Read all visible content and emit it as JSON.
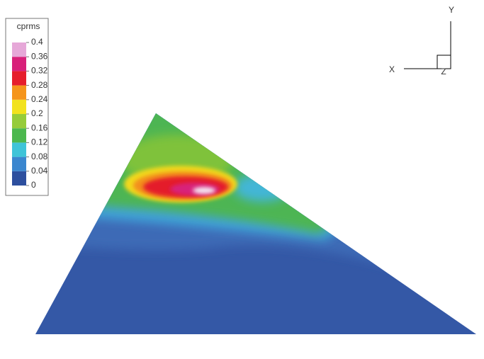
{
  "chart_data": {
    "type": "contour",
    "colorbar": {
      "title": "cprms",
      "ticks": [
        0,
        0.04,
        0.08,
        0.12,
        0.16,
        0.2,
        0.24,
        0.28,
        0.32,
        0.36,
        0.4
      ],
      "colors": [
        "#2d4f9e",
        "#3a86cf",
        "#3fc4d8",
        "#4cb84e",
        "#96cc3a",
        "#f2e21e",
        "#f5951c",
        "#e61e2c",
        "#d8207a",
        "#e6a8d8"
      ]
    },
    "axis_triad": {
      "x": "X",
      "y": "Y",
      "z": "Z"
    }
  }
}
